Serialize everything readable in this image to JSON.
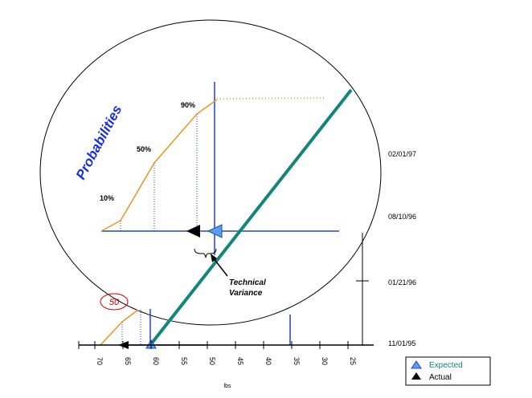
{
  "heading": "Probabilities",
  "percent_labels": [
    "10%",
    "50%",
    "90%"
  ],
  "dates": [
    "02/01/97",
    "08/10/96",
    "01/21/96",
    "11/01/95"
  ],
  "x_axis": {
    "ticks": [
      "70",
      "65",
      "60",
      "55",
      "50",
      "45",
      "40",
      "35",
      "30",
      "25"
    ],
    "label": "lbs"
  },
  "annotation": [
    "Technical",
    "Variance"
  ],
  "callout": "50",
  "legend": [
    "Expected",
    "Actual"
  ]
}
